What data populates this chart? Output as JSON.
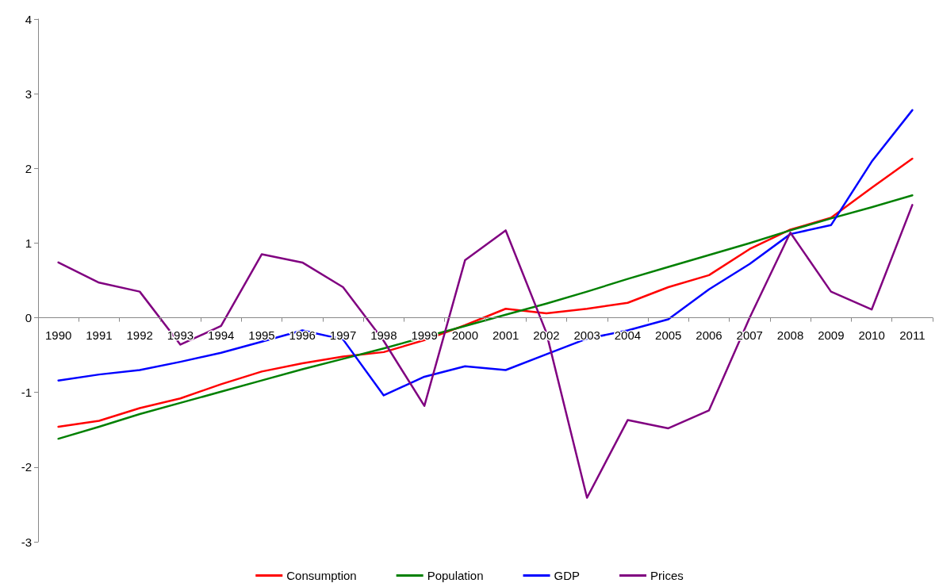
{
  "chart_data": {
    "type": "line",
    "categories": [
      "1990",
      "1991",
      "1992",
      "1993",
      "1994",
      "1995",
      "1996",
      "1997",
      "1998",
      "1999",
      "2000",
      "2001",
      "2002",
      "2003",
      "2004",
      "2005",
      "2006",
      "2007",
      "2008",
      "2009",
      "2010",
      "2011"
    ],
    "series": [
      {
        "name": "Consumption",
        "color": "#ff0000",
        "values": [
          -1.46,
          -1.38,
          -1.21,
          -1.08,
          -0.89,
          -0.72,
          -0.61,
          -0.52,
          -0.46,
          -0.3,
          -0.1,
          0.12,
          0.06,
          0.12,
          0.2,
          0.41,
          0.57,
          0.92,
          1.18,
          1.34,
          1.74,
          2.13
        ]
      },
      {
        "name": "Population",
        "color": "#008000",
        "values": [
          -1.62,
          -1.46,
          -1.29,
          -1.14,
          -0.99,
          -0.84,
          -0.69,
          -0.55,
          -0.41,
          -0.26,
          -0.11,
          0.04,
          0.19,
          0.35,
          0.52,
          0.68,
          0.84,
          1.0,
          1.17,
          1.33,
          1.48,
          1.64
        ]
      },
      {
        "name": "GDP",
        "color": "#0000ff",
        "values": [
          -0.84,
          -0.76,
          -0.7,
          -0.59,
          -0.47,
          -0.32,
          -0.17,
          -0.29,
          -1.04,
          -0.79,
          -0.65,
          -0.7,
          -0.49,
          -0.28,
          -0.17,
          -0.02,
          0.38,
          0.72,
          1.12,
          1.24,
          2.09,
          2.78
        ]
      },
      {
        "name": "Prices",
        "color": "#800080",
        "values": [
          0.74,
          0.47,
          0.35,
          -0.36,
          -0.11,
          0.85,
          0.74,
          0.41,
          -0.31,
          -1.18,
          0.77,
          1.17,
          -0.2,
          -2.41,
          -1.37,
          -1.48,
          -1.24,
          0.0,
          1.14,
          0.35,
          0.11,
          1.51
        ]
      }
    ],
    "ylim": [
      -3,
      4
    ],
    "yticks": [
      -3,
      -2,
      -1,
      0,
      1,
      2,
      3,
      4
    ],
    "grid": false,
    "legend": "bottom",
    "marker": "none",
    "line_style": "solid"
  }
}
